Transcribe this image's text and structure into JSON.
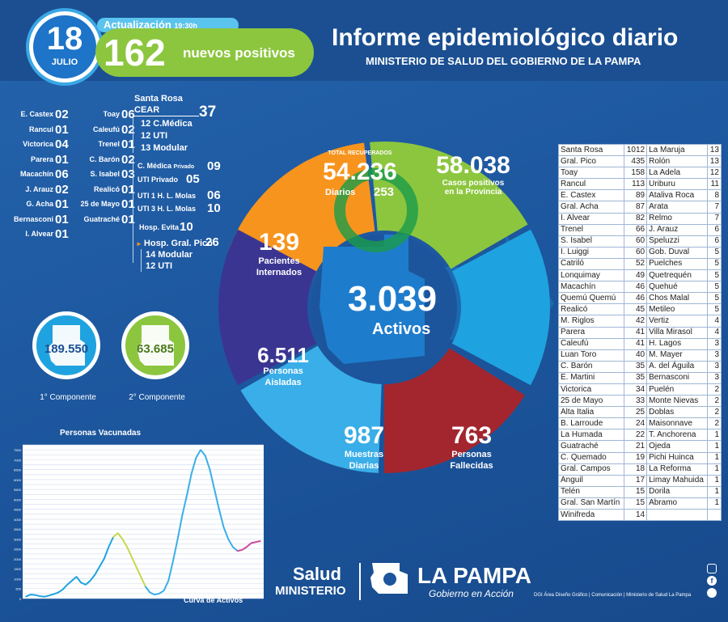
{
  "header": {
    "day": "18",
    "month": "JULIO",
    "update_label": "Actualización",
    "update_time": "19:30h",
    "new_positives": "162",
    "new_positives_label": "nuevos positivos",
    "title": "Informe epidemiológico diario",
    "subtitle": "MINISTERIO DE SALUD DEL GOBIERNO DE LA PAMPA"
  },
  "internados_left": [
    {
      "name": "E. Castex",
      "value": "02"
    },
    {
      "name": "Rancul",
      "value": "01"
    },
    {
      "name": "Victorica",
      "value": "04"
    },
    {
      "name": "Parera",
      "value": "01"
    },
    {
      "name": "Macachín",
      "value": "06"
    },
    {
      "name": "J. Arauz",
      "value": "02"
    },
    {
      "name": "G. Acha",
      "value": "01"
    },
    {
      "name": "Bernasconi",
      "value": "01"
    },
    {
      "name": "I. Alvear",
      "value": "01"
    }
  ],
  "internados_mid": [
    {
      "name": "Toay",
      "value": "06"
    },
    {
      "name": "Caleufú",
      "value": "02"
    },
    {
      "name": "Trenel",
      "value": "01"
    },
    {
      "name": "C. Barón",
      "value": "02"
    },
    {
      "name": "S. Isabel",
      "value": "03"
    },
    {
      "name": "Realicó",
      "value": "01"
    },
    {
      "name": "25 de Mayo",
      "value": "01"
    },
    {
      "name": "Guatraché",
      "value": "01"
    }
  ],
  "santa_rosa": {
    "title": "Santa Rosa",
    "cear_label": "CEAR",
    "cear_value": "37",
    "cear_items": [
      "12 C.Médica",
      "12 UTI",
      "13 Modular"
    ],
    "cmedica_privado_label": "C. Médica",
    "cmedica_privado_sub": "Privado",
    "cmedica_privado_value": "09",
    "uti_privado_label": "UTI Privado",
    "uti_privado_value": "05",
    "uti1_label": "UTI 1 H. L. Molas",
    "uti1_value": "06",
    "uti3_label": "UTI 3 H. L. Molas",
    "uti3_value": "10",
    "evita_label": "Hosp. Evita",
    "evita_value": "10",
    "pico_label": "Hosp. Gral. Pico",
    "pico_value": "26",
    "pico_items": [
      "14 Modular",
      "12 UTI"
    ]
  },
  "components": [
    {
      "value": "189.550",
      "label": "1° Componente",
      "color": "#1fa3e0"
    },
    {
      "value": "63.685",
      "label": "2° Componente",
      "color": "#8cc63f"
    }
  ],
  "donut": {
    "recovered_label": "TOTAL RECUPERADOS",
    "recovered_value": "54.236",
    "recovered_daily_label": "Diarios",
    "recovered_daily_value": "253",
    "positives_value": "58.038",
    "positives_label_1": "Casos positivos",
    "positives_label_2": "en la Provincia",
    "hospitalized_value": "139",
    "hospitalized_label_1": "Pacientes",
    "hospitalized_label_2": "Internados",
    "isolated_value": "6.511",
    "isolated_label_1": "Personas",
    "isolated_label_2": "Aisladas",
    "samples_value": "987",
    "samples_label_1": "Muestras",
    "samples_label_2": "Diarias",
    "deaths_value": "763",
    "deaths_label_1": "Personas",
    "deaths_label_2": "Fallecidas",
    "active_value": "3.039",
    "active_label": "Activos"
  },
  "colors": {
    "green": "#8cc63f",
    "blue": "#1fa3e0",
    "orange": "#f7941d",
    "purple": "#3b3592",
    "lightblue": "#3aaee8",
    "red": "#a3262f"
  },
  "localities": [
    {
      "name": "Santa Rosa",
      "value": "1012"
    },
    {
      "name": "Gral. Pico",
      "value": "435"
    },
    {
      "name": "Toay",
      "value": "158"
    },
    {
      "name": "Rancul",
      "value": "113"
    },
    {
      "name": "E. Castex",
      "value": "89"
    },
    {
      "name": "Gral. Acha",
      "value": "87"
    },
    {
      "name": "I. Alvear",
      "value": "82"
    },
    {
      "name": "Trenel",
      "value": "66"
    },
    {
      "name": "S. Isabel",
      "value": "60"
    },
    {
      "name": "I. Luiggi",
      "value": "60"
    },
    {
      "name": "Catriló",
      "value": "52"
    },
    {
      "name": "Lonquimay",
      "value": "49"
    },
    {
      "name": "Macachín",
      "value": "46"
    },
    {
      "name": "Quemú Quemú",
      "value": "46"
    },
    {
      "name": "Realicó",
      "value": "45"
    },
    {
      "name": "M. Riglos",
      "value": "42"
    },
    {
      "name": "Parera",
      "value": "41"
    },
    {
      "name": "Caleufú",
      "value": "41"
    },
    {
      "name": "Luan Toro",
      "value": "40"
    },
    {
      "name": "C. Barón",
      "value": "35"
    },
    {
      "name": "E. Martini",
      "value": "35"
    },
    {
      "name": "Victorica",
      "value": "34"
    },
    {
      "name": "25 de Mayo",
      "value": "33"
    },
    {
      "name": "Alta Italia",
      "value": "25"
    },
    {
      "name": "B. Larroude",
      "value": "24"
    },
    {
      "name": "La Humada",
      "value": "22"
    },
    {
      "name": "Guatraché",
      "value": "21"
    },
    {
      "name": "C. Quemado",
      "value": "19"
    },
    {
      "name": "Gral. Campos",
      "value": "18"
    },
    {
      "name": "Anguil",
      "value": "17"
    },
    {
      "name": "Telén",
      "value": "15"
    },
    {
      "name": "Gral. San Martín",
      "value": "15"
    },
    {
      "name": "Winifreda",
      "value": "14"
    },
    {
      "name": "La Maruja",
      "value": "13"
    },
    {
      "name": "Rolón",
      "value": "13"
    },
    {
      "name": "La Adela",
      "value": "12"
    },
    {
      "name": "Uriburu",
      "value": "11"
    },
    {
      "name": "Ataliva Roca",
      "value": "8"
    },
    {
      "name": "Arata",
      "value": "7"
    },
    {
      "name": "Relmo",
      "value": "7"
    },
    {
      "name": "J. Arauz",
      "value": "6"
    },
    {
      "name": "Speluzzi",
      "value": "6"
    },
    {
      "name": "Gob. Duval",
      "value": "5"
    },
    {
      "name": "Puelches",
      "value": "5"
    },
    {
      "name": "Quetrequén",
      "value": "5"
    },
    {
      "name": "Quehué",
      "value": "5"
    },
    {
      "name": "Chos Malal",
      "value": "5"
    },
    {
      "name": "Metileo",
      "value": "5"
    },
    {
      "name": "Vertiz",
      "value": "4"
    },
    {
      "name": "Villa Mirasol",
      "value": "4"
    },
    {
      "name": "H. Lagos",
      "value": "3"
    },
    {
      "name": "M. Mayer",
      "value": "3"
    },
    {
      "name": "A. del Águila",
      "value": "3"
    },
    {
      "name": "Bernasconi",
      "value": "3"
    },
    {
      "name": "Puelén",
      "value": "2"
    },
    {
      "name": "Monte Nievas",
      "value": "2"
    },
    {
      "name": "Doblas",
      "value": "2"
    },
    {
      "name": "Maisonnave",
      "value": "2"
    },
    {
      "name": "T. Anchorena",
      "value": "1"
    },
    {
      "name": "Ojeda",
      "value": "1"
    },
    {
      "name": "Pichi Huinca",
      "value": "1"
    },
    {
      "name": "La Reforma",
      "value": "1"
    },
    {
      "name": "Limay Mahuida",
      "value": "1"
    },
    {
      "name": "Dorila",
      "value": "1"
    },
    {
      "name": "Abramo",
      "value": "1"
    }
  ],
  "chart_data": {
    "type": "line",
    "title": "Personas Vacunadas",
    "xlabel": "Curva de Activos",
    "ylabel": "",
    "yticks": [
      "0",
      "250",
      "500",
      "750",
      "1000",
      "1250",
      "1500",
      "1750",
      "2000",
      "2250",
      "2500",
      "2750",
      "3000",
      "3250",
      "3500",
      "3750",
      "4000",
      "4250",
      "4500",
      "4750",
      "5000",
      "5250",
      "5500",
      "5750",
      "6000",
      "6250",
      "6500",
      "6750",
      "7000",
      "7250",
      "7500",
      "7750"
    ],
    "ylim": [
      0,
      7750
    ],
    "values": [
      100,
      200,
      180,
      120,
      90,
      150,
      220,
      300,
      450,
      700,
      900,
      1100,
      800,
      700,
      900,
      1200,
      1600,
      2000,
      2600,
      3100,
      3300,
      3000,
      2600,
      2100,
      1600,
      1100,
      600,
      300,
      200,
      250,
      400,
      900,
      1900,
      3000,
      4200,
      5200,
      6300,
      7100,
      7500,
      7200,
      6500,
      5500,
      4500,
      3600,
      3000,
      2600,
      2400,
      2450,
      2600,
      2800,
      2850,
      2900
    ]
  },
  "footer": {
    "salud": "Salud",
    "ministerio": "MINISTERIO",
    "la_pampa": "LA PAMPA",
    "gobierno": "Gobierno en Acción",
    "credits": "DGI Área Diseño Gráfico | Comunicación | Ministerio de Salud La Pampa"
  }
}
